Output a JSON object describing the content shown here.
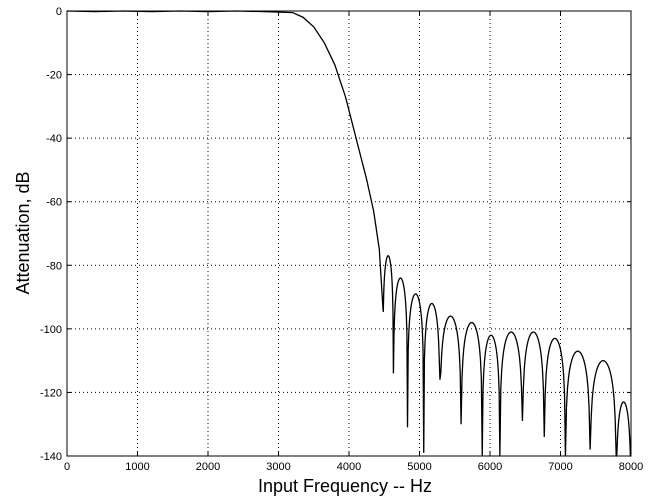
{
  "chart_data": {
    "type": "line",
    "title": "",
    "xlabel": "Input Frequency -- Hz",
    "ylabel": "Attenuation, dB",
    "xlim": [
      0,
      8000
    ],
    "ylim": [
      -140,
      0
    ],
    "x_ticks": [
      0,
      1000,
      2000,
      3000,
      4000,
      5000,
      6000,
      7000,
      8000
    ],
    "y_ticks": [
      0,
      -20,
      -40,
      -60,
      -80,
      -100,
      -120,
      -140
    ],
    "grid": "dotted",
    "passband": [
      [
        0,
        0
      ],
      [
        400,
        -0.2
      ],
      [
        800,
        0
      ],
      [
        1200,
        -0.2
      ],
      [
        1600,
        0
      ],
      [
        2000,
        -0.2
      ],
      [
        2400,
        0
      ],
      [
        2800,
        -0.2
      ],
      [
        3200,
        -0.5
      ]
    ],
    "transition": [
      [
        3200,
        -0.5
      ],
      [
        3350,
        -2
      ],
      [
        3500,
        -5
      ],
      [
        3650,
        -10
      ],
      [
        3800,
        -17
      ],
      [
        3950,
        -27
      ],
      [
        4100,
        -40
      ],
      [
        4250,
        -53
      ],
      [
        4350,
        -63
      ],
      [
        4430,
        -75
      ],
      [
        4480,
        -93
      ]
    ],
    "lobes": [
      {
        "x0": 4480,
        "x1": 4630,
        "peak": -77,
        "null": -114
      },
      {
        "x0": 4630,
        "x1": 4830,
        "peak": -84,
        "null": -131
      },
      {
        "x0": 4830,
        "x1": 5060,
        "peak": -89,
        "null": -139
      },
      {
        "x0": 5060,
        "x1": 5290,
        "peak": -92,
        "null": -116
      },
      {
        "x0": 5290,
        "x1": 5590,
        "peak": -96,
        "null": -130
      },
      {
        "x0": 5590,
        "x1": 5890,
        "peak": -98,
        "null": -140
      },
      {
        "x0": 5890,
        "x1": 6140,
        "peak": -102,
        "null": -140
      },
      {
        "x0": 6140,
        "x1": 6460,
        "peak": -101,
        "null": -129
      },
      {
        "x0": 6460,
        "x1": 6770,
        "peak": -101,
        "null": -134
      },
      {
        "x0": 6770,
        "x1": 7070,
        "peak": -103,
        "null": -140
      },
      {
        "x0": 7070,
        "x1": 7420,
        "peak": -107,
        "null": -138
      },
      {
        "x0": 7420,
        "x1": 7790,
        "peak": -110,
        "null": -140
      },
      {
        "x0": 7790,
        "x1": 8000,
        "peak": -123,
        "null": -140
      }
    ]
  }
}
